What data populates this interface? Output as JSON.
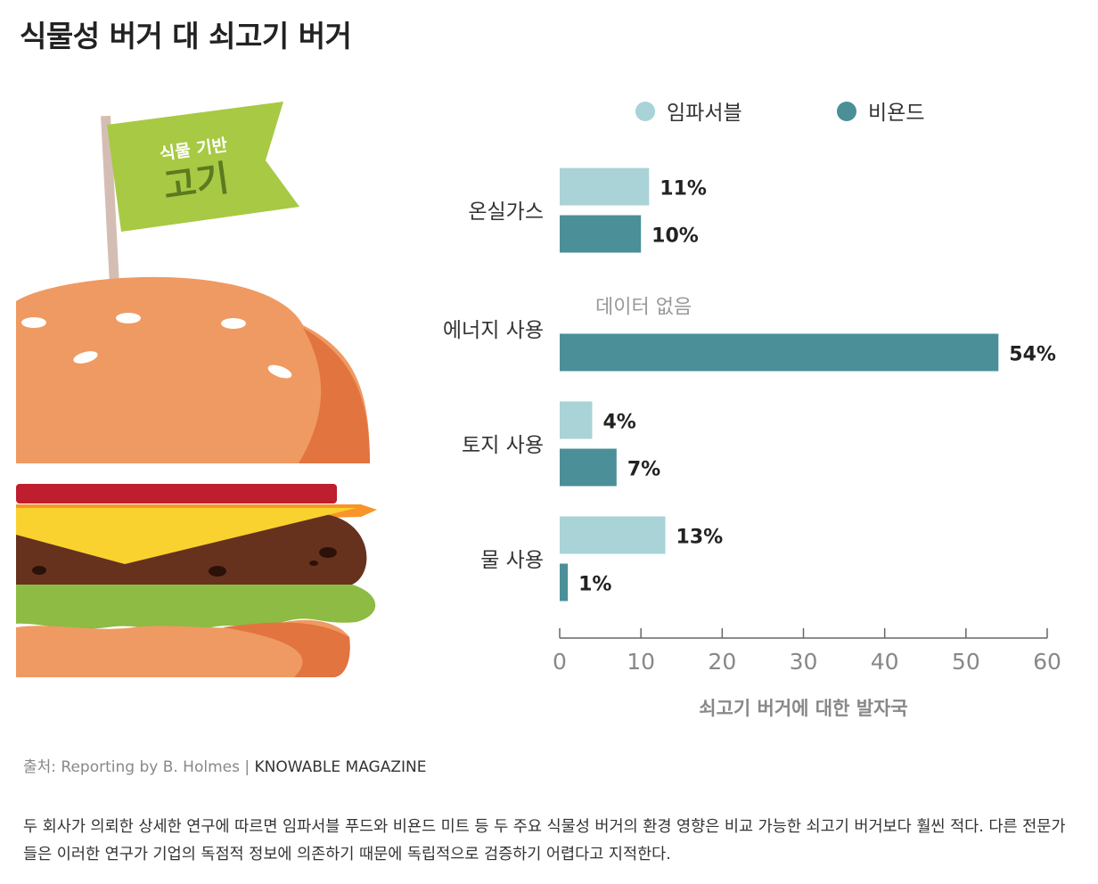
{
  "title": "식물성 버거 대 쇠고기 버거",
  "flag": {
    "line1": "식물 기반",
    "line2": "고기"
  },
  "chart_data": {
    "type": "bar",
    "orientation": "horizontal",
    "categories": [
      "온실가스",
      "에너지 사용",
      "토지 사용",
      "물 사용"
    ],
    "series": [
      {
        "name": "임파서블",
        "color": "#a9d3d6",
        "values": [
          11,
          null,
          4,
          13
        ],
        "labels": [
          "11%",
          "",
          "4%",
          "13%"
        ]
      },
      {
        "name": "비욘드",
        "color": "#4b8f98",
        "values": [
          10,
          54,
          7,
          1
        ],
        "labels": [
          "10%",
          "54%",
          "7%",
          "1%"
        ]
      }
    ],
    "missing_note": "데이터 없음",
    "xlim": [
      0,
      60
    ],
    "xticks": [
      "0",
      "10",
      "20",
      "30",
      "40",
      "50",
      "60"
    ],
    "xlabel": "쇠고기 버거에 대한 발자국",
    "legend_position": "top"
  },
  "source": {
    "prefix": "출처: Reporting by B. Holmes | ",
    "magazine": "KNOWABLE MAGAZINE"
  },
  "caption": "두 회사가 의뢰한 상세한 연구에 따르면 임파서블 푸드와 비욘드 미트 등 두 주요 식물성 버거의 환경 영향은 비교 가능한 쇠고기 버거보다 훨씬 적다. 다른 전문가들은 이러한 연구가 기업의 독점적 정보에 의존하기 때문에 독립적으로 검증하기 어렵다고 지적한다.",
  "colors": {
    "bun": "#ef9a62",
    "bun_shade": "#e2743f",
    "tomato": "#be1e2d",
    "cheese": "#f9d22f",
    "cheese_edge": "#f8942a",
    "patty": "#66321e",
    "lettuce": "#8dbb43",
    "flag": "#a7c944",
    "flag_text": "#5c7a1f",
    "pole": "#d4beb4"
  }
}
